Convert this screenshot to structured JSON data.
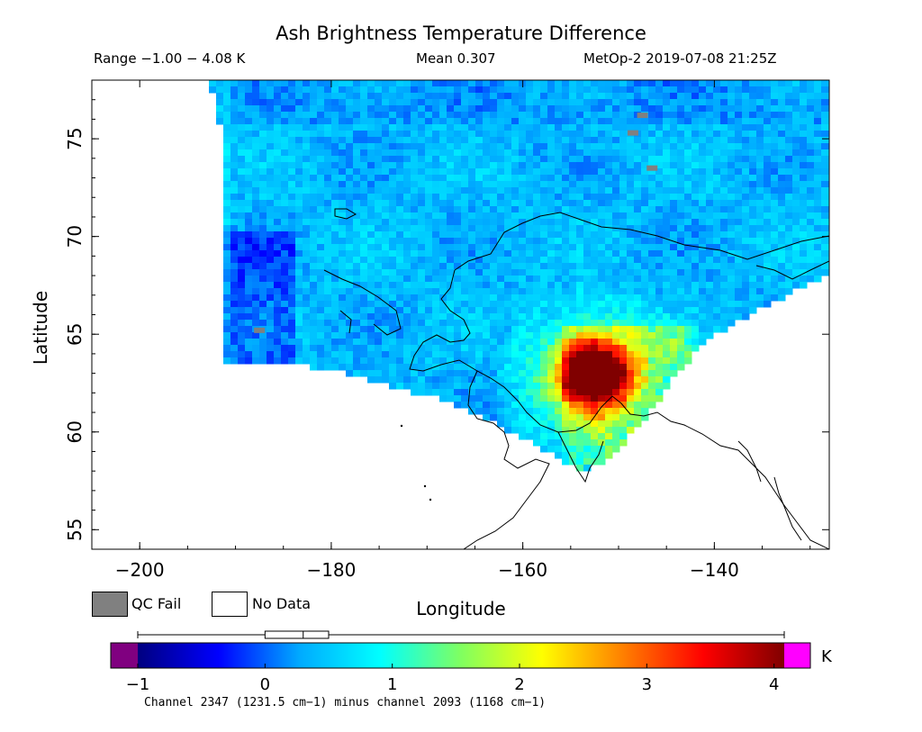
{
  "header": {
    "title": "Ash Brightness Temperature Difference",
    "range": "Range −1.00 − 4.08 K",
    "mean": "Mean 0.307",
    "satellite": "MetOp-2 2019-07-08 21:25Z"
  },
  "legend": {
    "qc_fail_label": "QC Fail",
    "no_data_label": "No Data",
    "qc_fail_color": "#808080",
    "no_data_color": "#ffffff"
  },
  "colorbar": {
    "unit": "K",
    "footnote": "Channel 2347 (1231.5 cm−1) minus channel 2093 (1168 cm−1)",
    "ticks": [
      "−1",
      "0",
      "1",
      "2",
      "3",
      "4"
    ],
    "under_color": "#800080",
    "over_color": "#ff00ff",
    "stops": [
      "#000080",
      "#0000ff",
      "#00aaff",
      "#00ffff",
      "#80ff60",
      "#ffff00",
      "#ff8000",
      "#ff0000",
      "#800000"
    ],
    "box_whisker": {
      "min": -1.0,
      "q1": 0.0,
      "median": 0.3,
      "q3": 0.5,
      "max": 4.08
    }
  },
  "chart_data": {
    "type": "heatmap",
    "title": "Ash Brightness Temperature Difference",
    "xlabel": "Longitude",
    "ylabel": "Latitude",
    "xlim": [
      -205,
      -128
    ],
    "ylim": [
      54,
      78
    ],
    "xticks": [
      "−200",
      "−180",
      "−160",
      "−140"
    ],
    "yticks": [
      "55",
      "60",
      "65",
      "70",
      "75"
    ],
    "value_range": [
      -1.0,
      4.08
    ],
    "mean": 0.307,
    "hotspot": {
      "lon": -152.5,
      "lat": 63.0,
      "peak_value": 4.08
    },
    "swath_edge_lon": -192,
    "qc_fail_pixels": [
      {
        "lon": -187.5,
        "lat": 65.2
      },
      {
        "lon": -148.5,
        "lat": 75.3
      },
      {
        "lon": -146.5,
        "lat": 73.5
      },
      {
        "lon": -147.5,
        "lat": 76.2
      }
    ]
  }
}
